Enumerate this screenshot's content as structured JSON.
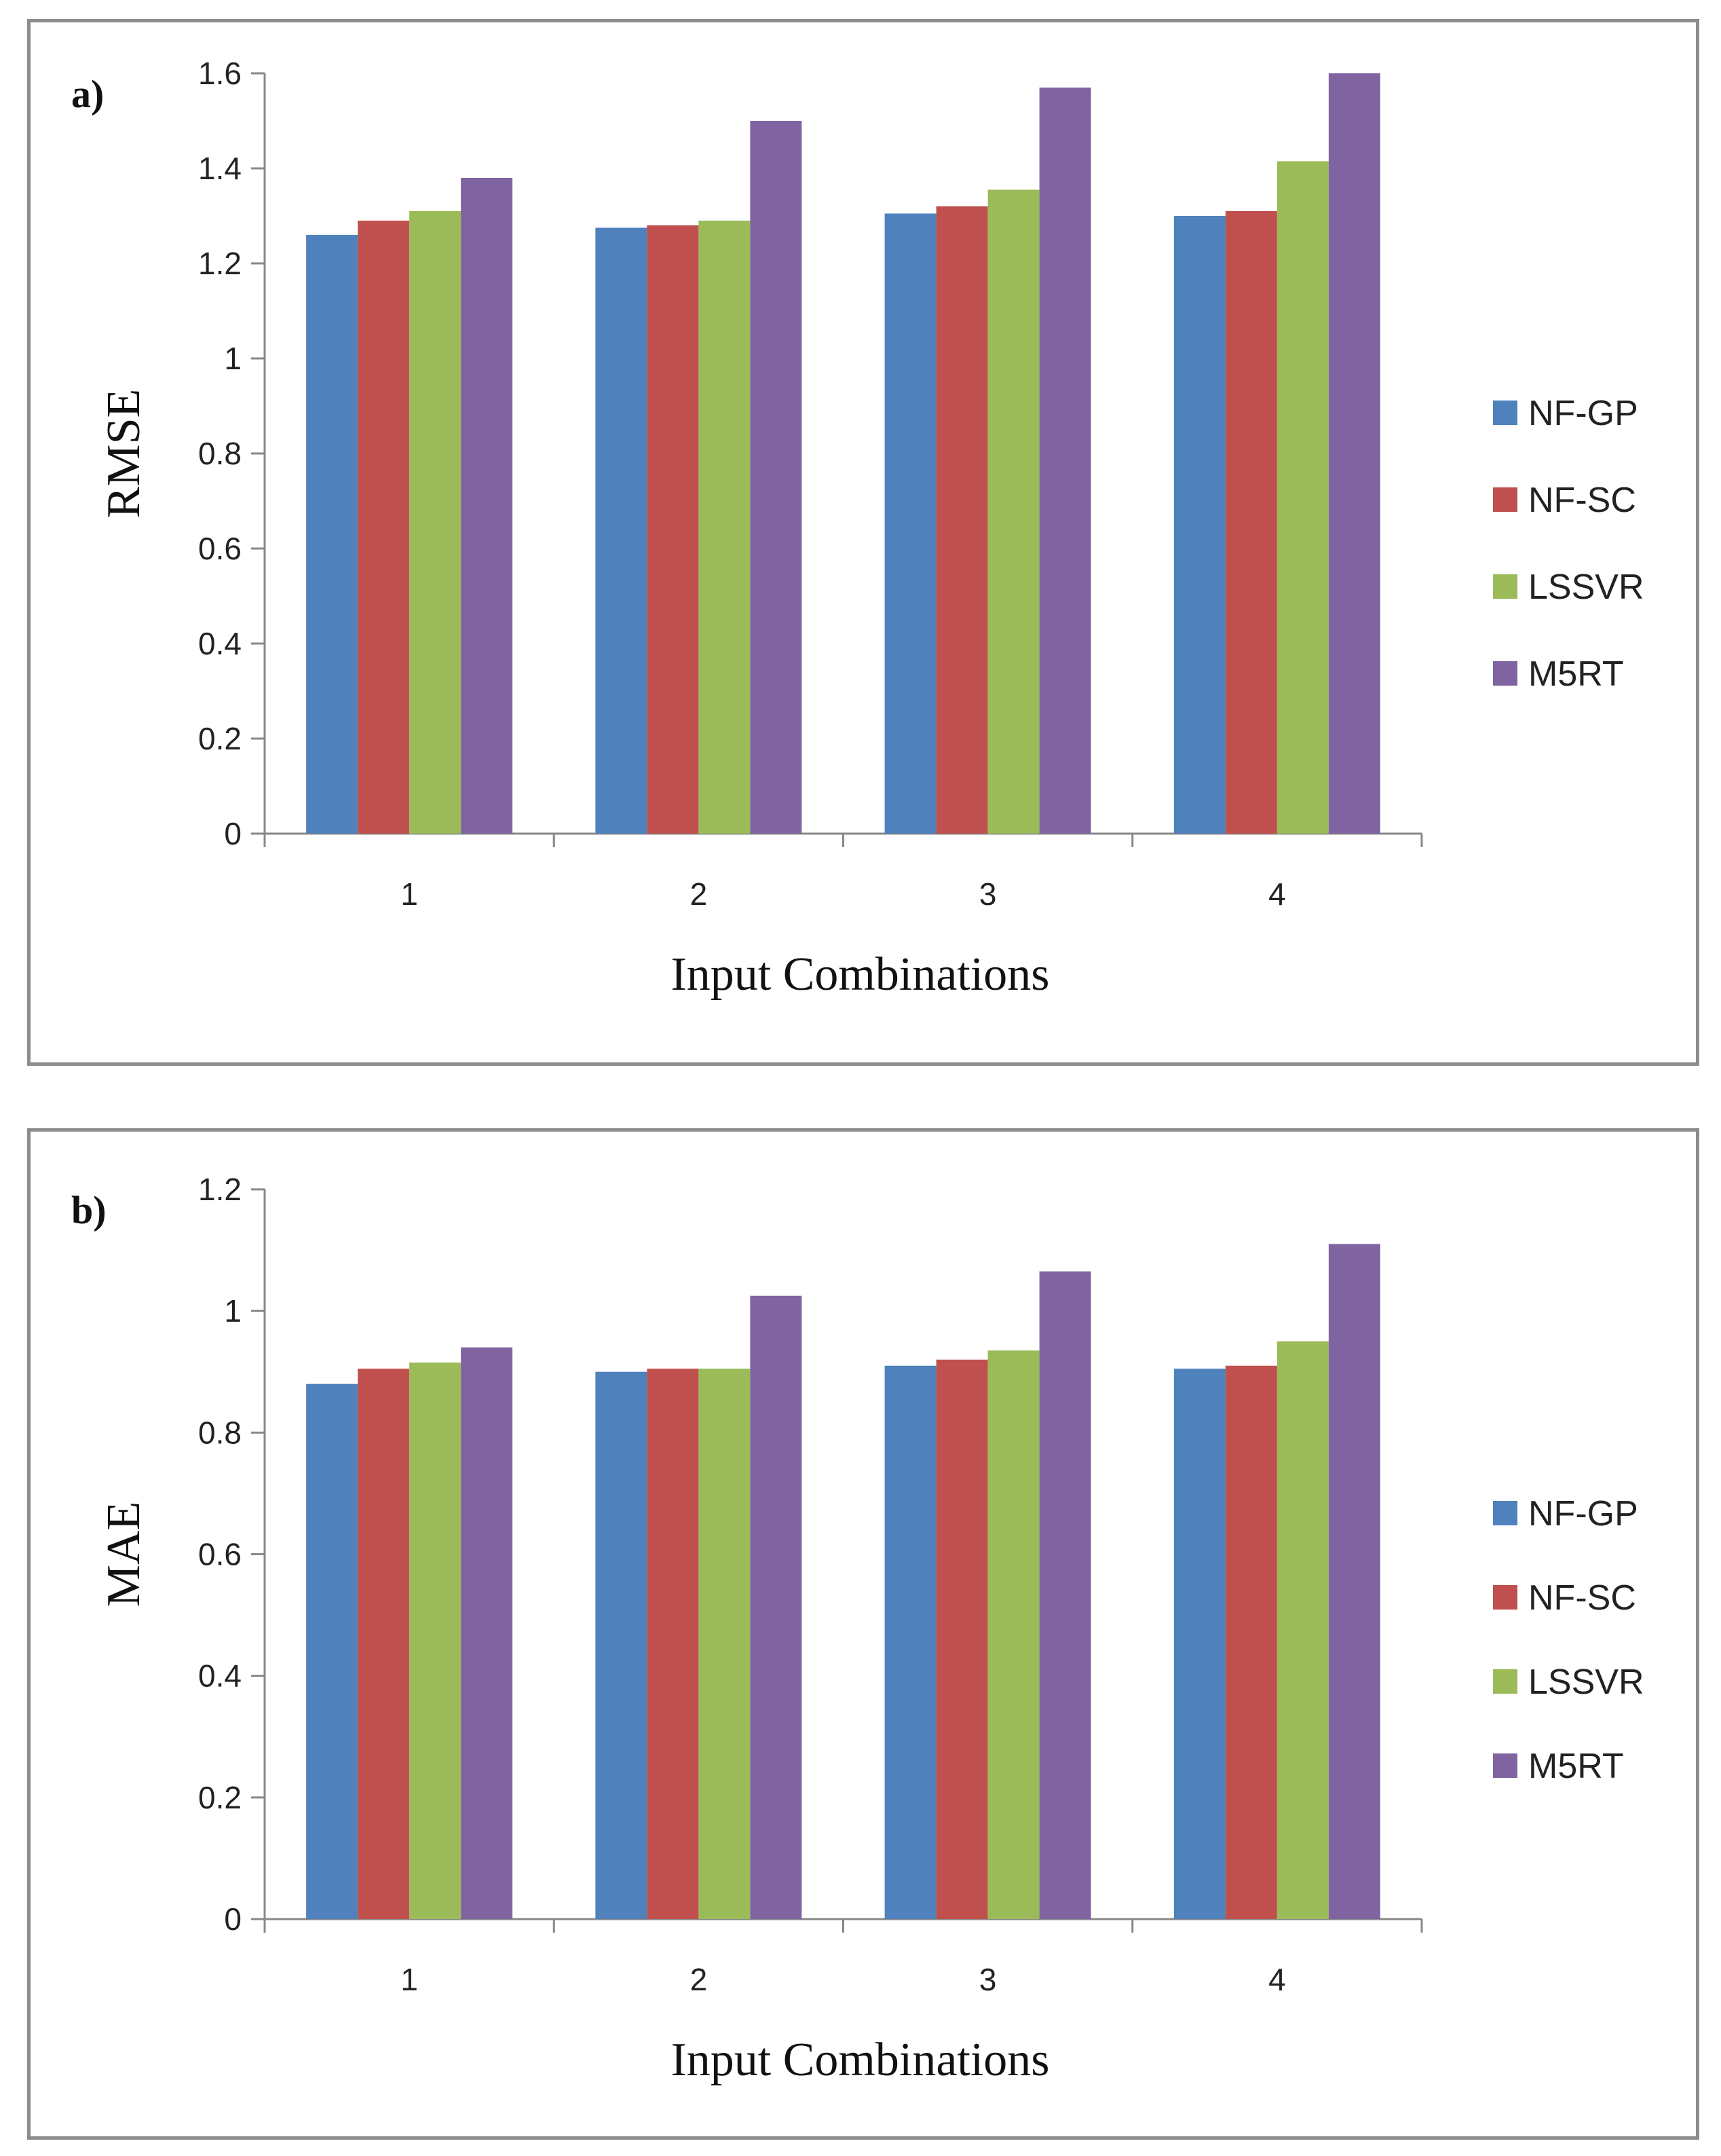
{
  "chart_data": [
    {
      "type": "bar",
      "panel_label": "a)",
      "title": "",
      "xlabel": "Input Combinations",
      "ylabel": "RMSE",
      "ylim": [
        0,
        1.6
      ],
      "yticks": [
        "0",
        "0.2",
        "0.4",
        "0.6",
        "0.8",
        "1",
        "1.2",
        "1.4",
        "1.6"
      ],
      "categories": [
        "1",
        "2",
        "3",
        "4"
      ],
      "legend_position": "right",
      "series": [
        {
          "name": "NF-GP",
          "color": "#4F81BD",
          "values": [
            1.26,
            1.275,
            1.305,
            1.3
          ]
        },
        {
          "name": "NF-SC",
          "color": "#C0504D",
          "values": [
            1.29,
            1.28,
            1.32,
            1.31
          ]
        },
        {
          "name": "LSSVR",
          "color": "#9BBB59",
          "values": [
            1.31,
            1.29,
            1.355,
            1.415
          ]
        },
        {
          "name": "M5RT",
          "color": "#8064A2",
          "values": [
            1.38,
            1.5,
            1.57,
            1.6
          ]
        }
      ]
    },
    {
      "type": "bar",
      "panel_label": "b)",
      "title": "",
      "xlabel": "Input Combinations",
      "ylabel": "MAE",
      "ylim": [
        0,
        1.2
      ],
      "yticks": [
        "0",
        "0.2",
        "0.4",
        "0.6",
        "0.8",
        "1",
        "1.2"
      ],
      "categories": [
        "1",
        "2",
        "3",
        "4"
      ],
      "legend_position": "right",
      "series": [
        {
          "name": "NF-GP",
          "color": "#4F81BD",
          "values": [
            0.88,
            0.9,
            0.91,
            0.905
          ]
        },
        {
          "name": "NF-SC",
          "color": "#C0504D",
          "values": [
            0.905,
            0.905,
            0.92,
            0.91
          ]
        },
        {
          "name": "LSSVR",
          "color": "#9BBB59",
          "values": [
            0.915,
            0.905,
            0.935,
            0.95
          ]
        },
        {
          "name": "M5RT",
          "color": "#8064A2",
          "values": [
            0.94,
            1.025,
            1.065,
            1.11
          ]
        }
      ]
    }
  ]
}
